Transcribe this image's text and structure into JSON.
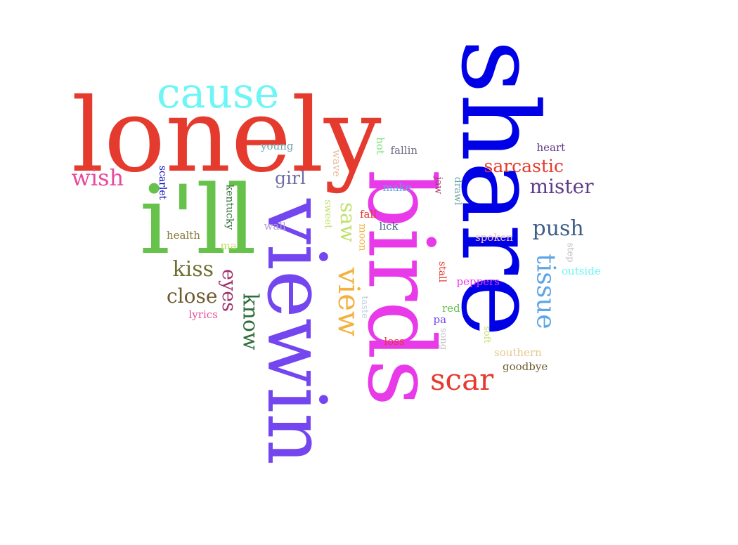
{
  "cloud": {
    "words": [
      {
        "text": "share",
        "color": "#0000e6",
        "rot": 90
      },
      {
        "text": "lonely",
        "color": "#e53a2e",
        "rot": 0
      },
      {
        "text": "birds",
        "color": "#e83ae8",
        "rot": 90
      },
      {
        "text": "viewin",
        "color": "#7346f0",
        "rot": 90
      },
      {
        "text": "i'll",
        "color": "#66c24a",
        "rot": 0
      },
      {
        "text": "cause",
        "color": "#6ef6f6",
        "rot": 0
      },
      {
        "text": "view",
        "color": "#f4b13e",
        "rot": 90
      },
      {
        "text": "scar",
        "color": "#e53a2e",
        "rot": 0
      },
      {
        "text": "tissue",
        "color": "#5ea6e6",
        "rot": 90
      },
      {
        "text": "push",
        "color": "#3f5e86",
        "rot": 0
      },
      {
        "text": "mister",
        "color": "#5f3a86",
        "rot": 0
      },
      {
        "text": "sarcastic",
        "color": "#e53a2e",
        "rot": 0
      },
      {
        "text": "wish",
        "color": "#e84a9c",
        "rot": 0
      },
      {
        "text": "saw",
        "color": "#c0e068",
        "rot": 90
      },
      {
        "text": "kiss",
        "color": "#6e6e32",
        "rot": 0
      },
      {
        "text": "close",
        "color": "#6e5a2e",
        "rot": 0
      },
      {
        "text": "know",
        "color": "#2e6e3a",
        "rot": 90
      },
      {
        "text": "eyes",
        "color": "#a0306a",
        "rot": 90
      },
      {
        "text": "girl",
        "color": "#6e6ea6",
        "rot": 0
      },
      {
        "text": "heart",
        "color": "#5f3a86",
        "rot": 0
      },
      {
        "text": "young",
        "color": "#6ea6a6",
        "rot": 0
      },
      {
        "text": "fallin",
        "color": "#6e6e86",
        "rot": 0
      },
      {
        "text": "hot",
        "color": "#7ee07e",
        "rot": 90
      },
      {
        "text": "wave",
        "color": "#e6c0a0",
        "rot": 90
      },
      {
        "text": "scarlet",
        "color": "#0000c0",
        "rot": 90
      },
      {
        "text": "kentucky",
        "color": "#2e6e3a",
        "rot": 90
      },
      {
        "text": "make",
        "color": "#5ea6e6",
        "rot": 0
      },
      {
        "text": "jaw",
        "color": "#a03a6a",
        "rot": 90
      },
      {
        "text": "drawl",
        "color": "#6ea6a6",
        "rot": 90
      },
      {
        "text": "fall",
        "color": "#e53a2e",
        "rot": 0
      },
      {
        "text": "sweet",
        "color": "#c0e068",
        "rot": 90
      },
      {
        "text": "moon",
        "color": "#f4b13e",
        "rot": 90
      },
      {
        "text": "wall",
        "color": "#b8a0d0",
        "rot": 0
      },
      {
        "text": "lick",
        "color": "#3f5e86",
        "rot": 0
      },
      {
        "text": "health",
        "color": "#8a7a3a",
        "rot": 0
      },
      {
        "text": "ma",
        "color": "#c0e068",
        "rot": 0
      },
      {
        "text": "spoken",
        "color": "#f4c0c0",
        "rot": 0
      },
      {
        "text": "step",
        "color": "#c0c0c0",
        "rot": 90
      },
      {
        "text": "outside",
        "color": "#6ef6f6",
        "rot": 0
      },
      {
        "text": "stall",
        "color": "#e53a2e",
        "rot": 90
      },
      {
        "text": "peppers",
        "color": "#e83ae8",
        "rot": 0
      },
      {
        "text": "taste",
        "color": "#c0d0e0",
        "rot": 90
      },
      {
        "text": "lyrics",
        "color": "#e84a9c",
        "rot": 0
      },
      {
        "text": "red",
        "color": "#66c24a",
        "rot": 0
      },
      {
        "text": "pa",
        "color": "#7346f0",
        "rot": 0
      },
      {
        "text": "song",
        "color": "#c0c0c0",
        "rot": 90
      },
      {
        "text": "soft",
        "color": "#c0e068",
        "rot": 90
      },
      {
        "text": "loss",
        "color": "#e53a2e",
        "rot": 0
      },
      {
        "text": "southern",
        "color": "#e6c890",
        "rot": 0
      },
      {
        "text": "goodbye",
        "color": "#6e5a2e",
        "rot": 0
      }
    ]
  }
}
